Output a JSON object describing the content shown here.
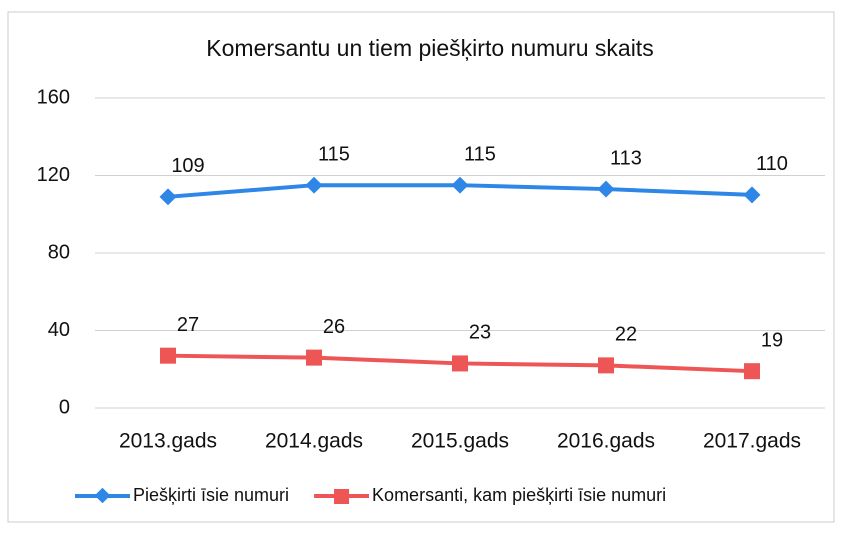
{
  "chart_data": {
    "type": "line",
    "title": "Komersantu un tiem piešķirto numuru skaits",
    "categories": [
      "2013.gads",
      "2014.gads",
      "2015.gads",
      "2016.gads",
      "2017.gads"
    ],
    "series": [
      {
        "name": "Piešķirti īsie numuri",
        "color": "#2e86e6",
        "values": [
          109,
          115,
          115,
          113,
          110
        ]
      },
      {
        "name": "Komersanti, kam piešķirti īsie numuri",
        "color": "#ee5555",
        "values": [
          27,
          26,
          23,
          22,
          19
        ]
      }
    ],
    "ylim": [
      0,
      160
    ],
    "yticks": [
      0,
      40,
      80,
      120,
      160
    ],
    "grid": true,
    "legend": "bottom"
  }
}
